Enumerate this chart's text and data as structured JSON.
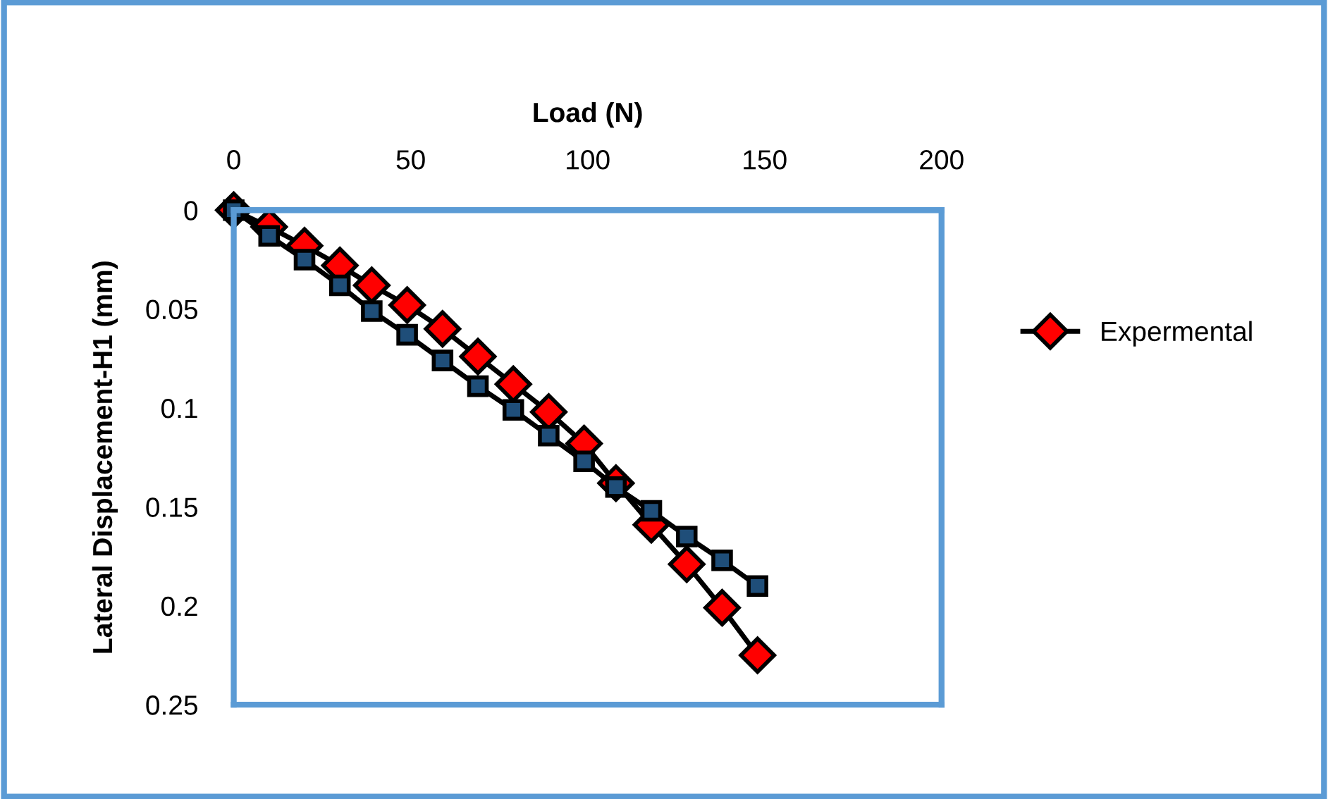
{
  "chart_data": {
    "type": "line",
    "xlabel": "Load (N)",
    "ylabel": "Lateral Displacement-H1 (mm)",
    "x": [
      0,
      10,
      20,
      30,
      39,
      49,
      59,
      69,
      79,
      89,
      99,
      108,
      118,
      128,
      138,
      148
    ],
    "series": [
      {
        "name": "Expermental",
        "color": "#ff0000",
        "marker": "diamond",
        "values": [
          0,
          0.0085,
          0.018,
          0.028,
          0.038,
          0.048,
          0.06,
          0.074,
          0.088,
          0.102,
          0.118,
          0.138,
          0.159,
          0.179,
          0.201,
          0.225
        ]
      },
      {
        "color": "#1f4e79",
        "marker": "square",
        "values": [
          0,
          0.013,
          0.025,
          0.038,
          0.051,
          0.063,
          0.076,
          0.089,
          0.101,
          0.114,
          0.127,
          0.14,
          0.152,
          0.165,
          0.177,
          0.19
        ]
      }
    ],
    "xlim": [
      0,
      200
    ],
    "xticks": [
      0,
      50,
      100,
      150,
      200
    ],
    "ylim": [
      0.25,
      0
    ],
    "yticks": [
      0,
      0.05,
      0.1,
      0.15,
      0.2,
      0.25
    ],
    "grid": false,
    "legend": "right",
    "line_style": "solid"
  }
}
